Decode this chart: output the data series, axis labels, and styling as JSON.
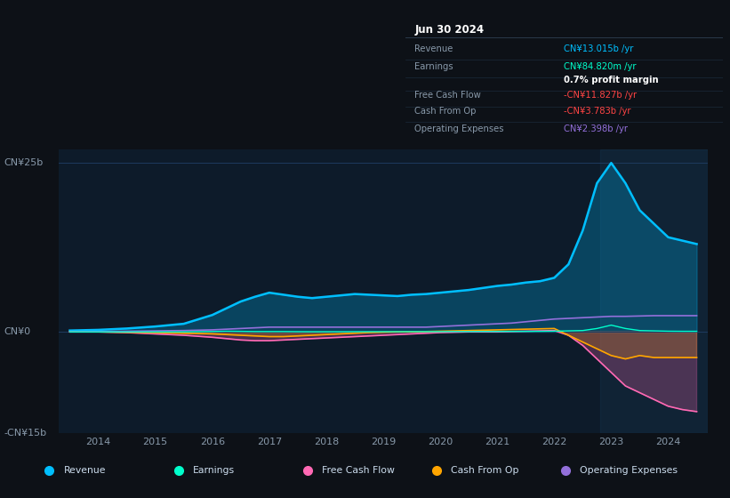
{
  "background_color": "#0d1117",
  "plot_bg_color": "#0d1b2a",
  "grid_color": "#1e3a5f",
  "ylim": [
    -15,
    27
  ],
  "xtick_labels": [
    "2014",
    "2015",
    "2016",
    "2017",
    "2018",
    "2019",
    "2020",
    "2021",
    "2022",
    "2023",
    "2024"
  ],
  "legend": [
    {
      "label": "Revenue",
      "color": "#00bfff"
    },
    {
      "label": "Earnings",
      "color": "#00ffcc"
    },
    {
      "label": "Free Cash Flow",
      "color": "#ff69b4"
    },
    {
      "label": "Cash From Op",
      "color": "#ffa500"
    },
    {
      "label": "Operating Expenses",
      "color": "#9370db"
    }
  ],
  "info_box": {
    "date": "Jun 30 2024",
    "rows": [
      {
        "label": "Revenue",
        "value": "CN¥13.015b /yr",
        "color": "#00bfff"
      },
      {
        "label": "Earnings",
        "value": "CN¥84.820m /yr",
        "color": "#00ffcc"
      },
      {
        "label": "",
        "value": "0.7% profit margin",
        "color": "#ffffff"
      },
      {
        "label": "Free Cash Flow",
        "value": "-CN¥11.827b /yr",
        "color": "#ff4444"
      },
      {
        "label": "Cash From Op",
        "value": "-CN¥3.783b /yr",
        "color": "#ff4444"
      },
      {
        "label": "Operating Expenses",
        "value": "CN¥2.398b /yr",
        "color": "#9370db"
      }
    ]
  },
  "years": [
    2013.5,
    2014.0,
    2014.5,
    2015.0,
    2015.5,
    2016.0,
    2016.25,
    2016.5,
    2016.75,
    2017.0,
    2017.25,
    2017.5,
    2017.75,
    2018.0,
    2018.25,
    2018.5,
    2018.75,
    2019.0,
    2019.25,
    2019.5,
    2019.75,
    2020.0,
    2020.25,
    2020.5,
    2020.75,
    2021.0,
    2021.25,
    2021.5,
    2021.75,
    2022.0,
    2022.25,
    2022.5,
    2022.75,
    2023.0,
    2023.25,
    2023.5,
    2023.75,
    2024.0,
    2024.25,
    2024.5
  ],
  "revenue": [
    0.2,
    0.3,
    0.5,
    0.8,
    1.2,
    2.5,
    3.5,
    4.5,
    5.2,
    5.8,
    5.5,
    5.2,
    5.0,
    5.2,
    5.4,
    5.6,
    5.5,
    5.4,
    5.3,
    5.5,
    5.6,
    5.8,
    6.0,
    6.2,
    6.5,
    6.8,
    7.0,
    7.3,
    7.5,
    8.0,
    10.0,
    15.0,
    22.0,
    25.0,
    22.0,
    18.0,
    16.0,
    14.0,
    13.5,
    13.0
  ],
  "earnings": [
    0.0,
    0.0,
    0.0,
    0.0,
    0.0,
    0.05,
    0.1,
    0.08,
    0.05,
    0.05,
    0.05,
    0.03,
    0.02,
    0.02,
    0.02,
    0.03,
    0.03,
    0.03,
    0.03,
    0.04,
    0.04,
    0.04,
    0.05,
    0.05,
    0.06,
    0.06,
    0.07,
    0.07,
    0.08,
    0.1,
    0.15,
    0.2,
    0.5,
    1.0,
    0.5,
    0.2,
    0.15,
    0.1,
    0.085,
    0.085
  ],
  "fcf": [
    0.0,
    0.0,
    -0.1,
    -0.3,
    -0.5,
    -0.8,
    -1.0,
    -1.2,
    -1.3,
    -1.3,
    -1.2,
    -1.1,
    -1.0,
    -0.9,
    -0.8,
    -0.7,
    -0.6,
    -0.5,
    -0.4,
    -0.3,
    -0.2,
    -0.1,
    -0.05,
    0.0,
    0.0,
    0.0,
    0.05,
    0.1,
    0.15,
    0.2,
    -0.5,
    -2.0,
    -4.0,
    -6.0,
    -8.0,
    -9.0,
    -10.0,
    -11.0,
    -11.5,
    -11.8
  ],
  "cfop": [
    0.0,
    0.0,
    -0.05,
    -0.1,
    -0.2,
    -0.3,
    -0.4,
    -0.5,
    -0.6,
    -0.7,
    -0.7,
    -0.6,
    -0.5,
    -0.4,
    -0.3,
    -0.2,
    -0.1,
    -0.05,
    0.0,
    0.0,
    0.05,
    0.1,
    0.15,
    0.2,
    0.25,
    0.3,
    0.35,
    0.4,
    0.45,
    0.5,
    -0.5,
    -1.5,
    -2.5,
    -3.5,
    -4.0,
    -3.5,
    -3.8,
    -3.8,
    -3.8,
    -3.8
  ],
  "opex": [
    0.0,
    0.05,
    0.1,
    0.15,
    0.2,
    0.3,
    0.4,
    0.5,
    0.6,
    0.7,
    0.7,
    0.7,
    0.7,
    0.7,
    0.7,
    0.7,
    0.7,
    0.7,
    0.7,
    0.7,
    0.7,
    0.8,
    0.9,
    1.0,
    1.1,
    1.2,
    1.3,
    1.5,
    1.7,
    1.9,
    2.0,
    2.1,
    2.2,
    2.3,
    2.3,
    2.35,
    2.4,
    2.4,
    2.4,
    2.4
  ]
}
